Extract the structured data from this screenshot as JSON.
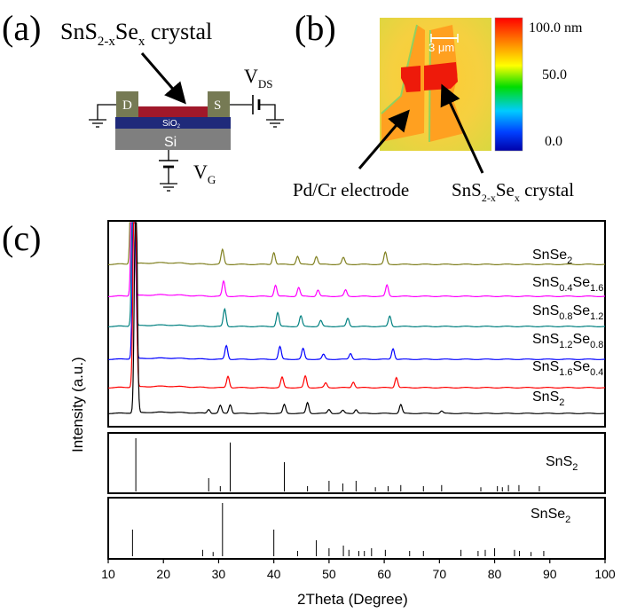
{
  "panel_a": {
    "label": "(a)",
    "crystal_label_base": "SnS",
    "crystal_label_sub1": "2-x",
    "crystal_label_mid": "Se",
    "crystal_label_sub2": "x",
    "crystal_label_tail": " crystal",
    "drain": "D",
    "source": "S",
    "oxide": "SiO",
    "oxide_sub": "2",
    "substrate": "Si",
    "vds_base": "V",
    "vds_sub": "DS",
    "vg_base": "V",
    "vg_sub": "G"
  },
  "panel_b": {
    "label": "(b)",
    "scale_bar": "3 μm",
    "colorbar_ticks": [
      "100.0 nm",
      "50.0",
      "0.0"
    ],
    "electrode_label": "Pd/Cr electrode",
    "crystal_label_base": "SnS",
    "crystal_label_sub1": "2-x",
    "crystal_label_mid": "Se",
    "crystal_label_sub2": "x",
    "crystal_label_tail": " crystal"
  },
  "panel_c": {
    "label": "(c)"
  },
  "chart_data": {
    "type": "line",
    "title": "",
    "xlabel": "2Theta (Degree)",
    "ylabel": "Intensity (a.u.)",
    "xlim": [
      10,
      100
    ],
    "x_ticks": [
      10,
      20,
      30,
      40,
      50,
      60,
      70,
      80,
      90,
      100
    ],
    "series": [
      {
        "name": "SnSe2",
        "label_base": "SnSe",
        "subs": [
          "2"
        ],
        "label_parts": [
          "SnSe",
          "2"
        ],
        "color": "#808020",
        "peaks": [
          [
            14.4,
            1.0
          ],
          [
            30.7,
            0.55
          ],
          [
            40.0,
            0.45
          ],
          [
            44.3,
            0.3
          ],
          [
            47.7,
            0.3
          ],
          [
            52.6,
            0.25
          ],
          [
            60.2,
            0.45
          ]
        ]
      },
      {
        "name": "SnS0.4Se1.6",
        "label_parts": [
          "SnS",
          "0.4",
          "Se",
          "1.6"
        ],
        "color": "#ff00ff",
        "peaks": [
          [
            14.5,
            1.0
          ],
          [
            30.9,
            0.6
          ],
          [
            40.3,
            0.45
          ],
          [
            44.5,
            0.35
          ],
          [
            48.0,
            0.25
          ],
          [
            53.0,
            0.25
          ],
          [
            60.5,
            0.45
          ]
        ]
      },
      {
        "name": "SnS0.8Se1.2",
        "label_parts": [
          "SnS",
          "0.8",
          "Se",
          "1.2"
        ],
        "color": "#008080",
        "peaks": [
          [
            14.6,
            1.0
          ],
          [
            31.1,
            0.75
          ],
          [
            40.7,
            0.6
          ],
          [
            44.9,
            0.45
          ],
          [
            48.5,
            0.25
          ],
          [
            53.4,
            0.35
          ],
          [
            61.0,
            0.45
          ]
        ]
      },
      {
        "name": "SnS1.2Se0.8",
        "label_parts": [
          "SnS",
          "1.2",
          "Se",
          "0.8"
        ],
        "color": "#0000ff",
        "peaks": [
          [
            14.7,
            1.0
          ],
          [
            31.4,
            0.7
          ],
          [
            41.1,
            0.65
          ],
          [
            45.3,
            0.55
          ],
          [
            49.0,
            0.25
          ],
          [
            53.9,
            0.3
          ],
          [
            61.6,
            0.55
          ]
        ]
      },
      {
        "name": "SnS1.6Se0.4",
        "label_parts": [
          "SnS",
          "1.6",
          "Se",
          "0.4"
        ],
        "color": "#ff0000",
        "peaks": [
          [
            14.8,
            1.0
          ],
          [
            31.7,
            0.5
          ],
          [
            41.5,
            0.45
          ],
          [
            45.7,
            0.5
          ],
          [
            49.4,
            0.2
          ],
          [
            54.4,
            0.25
          ],
          [
            62.2,
            0.45
          ]
        ]
      },
      {
        "name": "SnS2",
        "label_parts": [
          "SnS",
          "2"
        ],
        "color": "#000000",
        "peaks": [
          [
            15.0,
            1.0
          ],
          [
            28.2,
            0.2
          ],
          [
            30.3,
            0.4
          ],
          [
            32.1,
            0.45
          ],
          [
            41.9,
            0.45
          ],
          [
            46.1,
            0.55
          ],
          [
            50.0,
            0.2
          ],
          [
            52.5,
            0.15
          ],
          [
            54.9,
            0.2
          ],
          [
            63.0,
            0.45
          ],
          [
            70.4,
            0.12
          ]
        ]
      }
    ],
    "reference_patterns": [
      {
        "name": "SnS2",
        "label_parts": [
          "SnS",
          "2"
        ],
        "sticks": [
          [
            15.0,
            1.0
          ],
          [
            28.2,
            0.25
          ],
          [
            30.3,
            0.1
          ],
          [
            32.1,
            0.92
          ],
          [
            41.9,
            0.55
          ],
          [
            46.1,
            0.1
          ],
          [
            50.0,
            0.2
          ],
          [
            52.5,
            0.15
          ],
          [
            54.9,
            0.2
          ],
          [
            58.4,
            0.08
          ],
          [
            60.7,
            0.1
          ],
          [
            63.0,
            0.12
          ],
          [
            67.1,
            0.1
          ],
          [
            70.4,
            0.12
          ],
          [
            77.5,
            0.08
          ],
          [
            80.5,
            0.1
          ],
          [
            81.4,
            0.08
          ],
          [
            82.5,
            0.12
          ],
          [
            84.4,
            0.12
          ],
          [
            88.1,
            0.1
          ]
        ]
      },
      {
        "name": "SnSe2",
        "label_parts": [
          "SnSe",
          "2"
        ],
        "sticks": [
          [
            14.4,
            0.5
          ],
          [
            27.1,
            0.12
          ],
          [
            29.0,
            0.08
          ],
          [
            30.7,
            1.0
          ],
          [
            40.0,
            0.5
          ],
          [
            44.3,
            0.1
          ],
          [
            47.7,
            0.3
          ],
          [
            50.0,
            0.15
          ],
          [
            52.6,
            0.2
          ],
          [
            53.6,
            0.12
          ],
          [
            55.4,
            0.1
          ],
          [
            56.4,
            0.1
          ],
          [
            57.7,
            0.15
          ],
          [
            60.2,
            0.12
          ],
          [
            64.6,
            0.1
          ],
          [
            67.1,
            0.1
          ],
          [
            73.9,
            0.12
          ],
          [
            77.0,
            0.1
          ],
          [
            78.3,
            0.12
          ],
          [
            80.0,
            0.15
          ],
          [
            83.6,
            0.12
          ],
          [
            84.5,
            0.1
          ],
          [
            86.6,
            0.08
          ],
          [
            88.9,
            0.1
          ]
        ]
      }
    ]
  }
}
